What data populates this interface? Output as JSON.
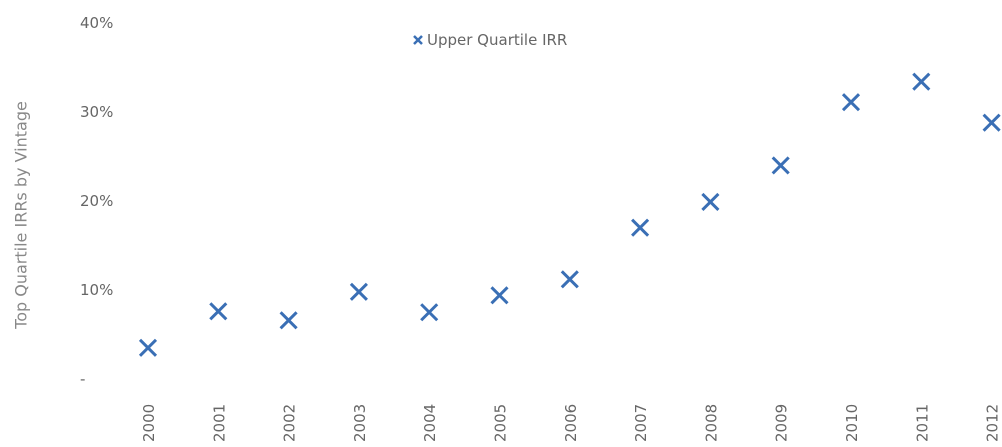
{
  "chart_data": {
    "type": "scatter",
    "y_label": "Top Quartile IRRs by Vintage",
    "categories": [
      "2000",
      "2001",
      "2002",
      "2003",
      "2004",
      "2005",
      "2006",
      "2007",
      "2008",
      "2009",
      "2010",
      "2011",
      "2012"
    ],
    "series": [
      {
        "name": "Upper Quartile IRR",
        "color": "#3a6fb5",
        "values": [
          3.5,
          7.6,
          6.6,
          9.8,
          7.5,
          9.4,
          11.2,
          17.0,
          19.9,
          24.0,
          31.1,
          33.4,
          28.8
        ]
      }
    ],
    "ylim": [
      0,
      40
    ],
    "yticks": [
      {
        "value": 0,
        "label": "-"
      },
      {
        "value": 10,
        "label": "10%"
      },
      {
        "value": 20,
        "label": "20%"
      },
      {
        "value": 30,
        "label": "30%"
      },
      {
        "value": 40,
        "label": "40%"
      }
    ],
    "grid": false,
    "legend": "top"
  }
}
